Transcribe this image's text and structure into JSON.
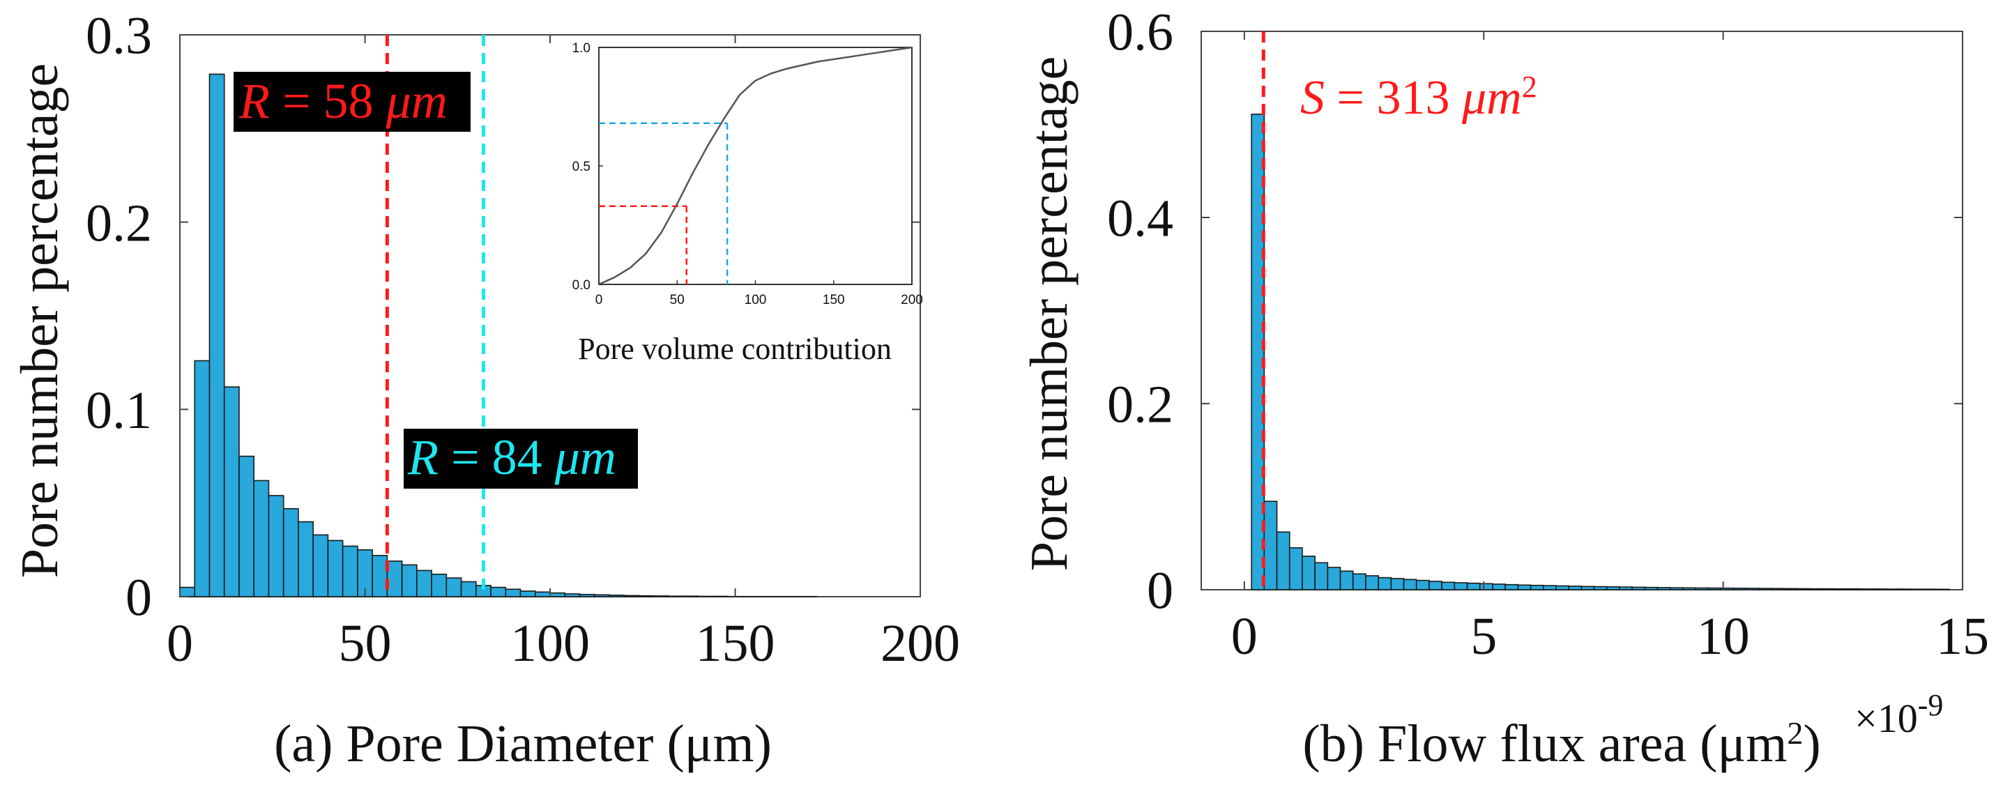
{
  "colors": {
    "bar_fill": "#29A8DB",
    "bar_stroke": "#1a1a1a",
    "red": "#ff1a1a",
    "cyan": "#1ee6f0",
    "label_bg": "#000000",
    "inset_curve": "#555555",
    "inset_blue": "#1fa8e8"
  },
  "chart_data": [
    {
      "id": "a",
      "type": "bar",
      "xlabel": "(a) Pore Diameter (μm)",
      "ylabel": "Pore number percentage",
      "xlim": [
        0,
        200
      ],
      "ylim": [
        0,
        0.3
      ],
      "xticks": [
        0,
        50,
        100,
        150,
        200
      ],
      "xtick_labels": [
        "0",
        "50",
        "100",
        "150",
        "200"
      ],
      "yticks": [
        0,
        0.1,
        0.2,
        0.3
      ],
      "ytick_labels": [
        "0",
        "0.1",
        "0.2",
        "0.3"
      ],
      "bin_width": 4,
      "bin_starts": [
        0,
        4,
        8,
        12,
        16,
        20,
        24,
        28,
        32,
        36,
        40,
        44,
        48,
        52,
        56,
        60,
        64,
        68,
        72,
        76,
        80,
        84,
        88,
        92,
        96,
        100,
        104,
        108,
        112,
        116,
        120,
        124,
        128,
        132,
        136,
        140,
        144,
        148,
        152,
        156,
        160,
        164,
        168
      ],
      "values": [
        0.005,
        0.126,
        0.279,
        0.112,
        0.075,
        0.062,
        0.054,
        0.047,
        0.04,
        0.033,
        0.03,
        0.027,
        0.025,
        0.022,
        0.019,
        0.017,
        0.014,
        0.012,
        0.01,
        0.008,
        0.006,
        0.005,
        0.004,
        0.003,
        0.0025,
        0.002,
        0.0015,
        0.0012,
        0.001,
        0.0008,
        0.0006,
        0.0005,
        0.0004,
        0.0003,
        0.0003,
        0.0002,
        0.0002,
        0.0001,
        0.0001,
        0.0001,
        0.0001,
        0.0001,
        0.0001
      ],
      "vlines": [
        {
          "x": 56,
          "color": "red",
          "label_prefix": "R",
          "label_rest": " = 58 ",
          "label_unit": "μm",
          "label_color": "red"
        },
        {
          "x": 82,
          "color": "cyan",
          "label_prefix": "R",
          "label_rest": " = 84 ",
          "label_unit": "μm",
          "label_color": "cyan"
        }
      ],
      "inset": {
        "type": "line",
        "title": "Pore volume contribution",
        "xlim": [
          0,
          200
        ],
        "ylim": [
          0,
          1.0
        ],
        "xticks": [
          0,
          50,
          100,
          150,
          200
        ],
        "xtick_labels": [
          "0",
          "50",
          "100",
          "150",
          "200"
        ],
        "yticks": [
          0,
          0.5,
          1.0
        ],
        "ytick_labels": [
          "0.0",
          "0.5",
          "1.0"
        ],
        "curve": {
          "x": [
            0,
            10,
            20,
            30,
            40,
            50,
            60,
            70,
            80,
            90,
            100,
            110,
            120,
            130,
            140,
            150,
            160,
            170,
            180,
            190,
            200
          ],
          "y": [
            0.0,
            0.03,
            0.07,
            0.13,
            0.22,
            0.34,
            0.47,
            0.59,
            0.7,
            0.8,
            0.86,
            0.89,
            0.91,
            0.925,
            0.94,
            0.95,
            0.96,
            0.97,
            0.98,
            0.99,
            1.0
          ]
        },
        "markers": [
          {
            "x": 56,
            "y": 0.33,
            "color": "red"
          },
          {
            "x": 82,
            "y": 0.68,
            "color": "inset_blue"
          }
        ]
      }
    },
    {
      "id": "b",
      "type": "bar",
      "xlabel": "(b) Flow flux area (μm²)",
      "xlabel_prefix": "(b) Flow flux area (μm",
      "xlabel_sup": "2",
      "xlabel_suffix": ")",
      "exponent_label": "×10",
      "exponent_power": "-9",
      "ylabel": "Pore number percentage",
      "xlim": [
        -0.9,
        15
      ],
      "ylim": [
        0,
        0.6
      ],
      "xticks": [
        0,
        5,
        10,
        15
      ],
      "xtick_labels": [
        "0",
        "5",
        "10",
        "15"
      ],
      "yticks": [
        0,
        0.2,
        0.4,
        0.6
      ],
      "ytick_labels": [
        "0",
        "0.2",
        "0.4",
        "0.6"
      ],
      "bin_width": 0.265,
      "bin_start": 0.15,
      "values": [
        0.511,
        0.095,
        0.062,
        0.045,
        0.036,
        0.029,
        0.024,
        0.02,
        0.017,
        0.015,
        0.013,
        0.012,
        0.011,
        0.01,
        0.009,
        0.008,
        0.0075,
        0.007,
        0.0065,
        0.006,
        0.0055,
        0.005,
        0.0047,
        0.0044,
        0.0041,
        0.0038,
        0.0035,
        0.0033,
        0.0031,
        0.0029,
        0.0027,
        0.0025,
        0.0023,
        0.0021,
        0.002,
        0.0019,
        0.0018,
        0.0017,
        0.0016,
        0.0015,
        0.0014,
        0.0013,
        0.0012,
        0.0011,
        0.001,
        0.001,
        0.0009,
        0.0009,
        0.0008,
        0.0008,
        0.0007,
        0.0007,
        0.0006,
        0.0006,
        0.0005
      ],
      "vlines": [
        {
          "x": 0.4,
          "color": "red",
          "label_prefix": "S",
          "label_rest": " = 313 ",
          "label_unit": "μm",
          "label_sup": "2",
          "label_color": "red"
        }
      ]
    }
  ]
}
